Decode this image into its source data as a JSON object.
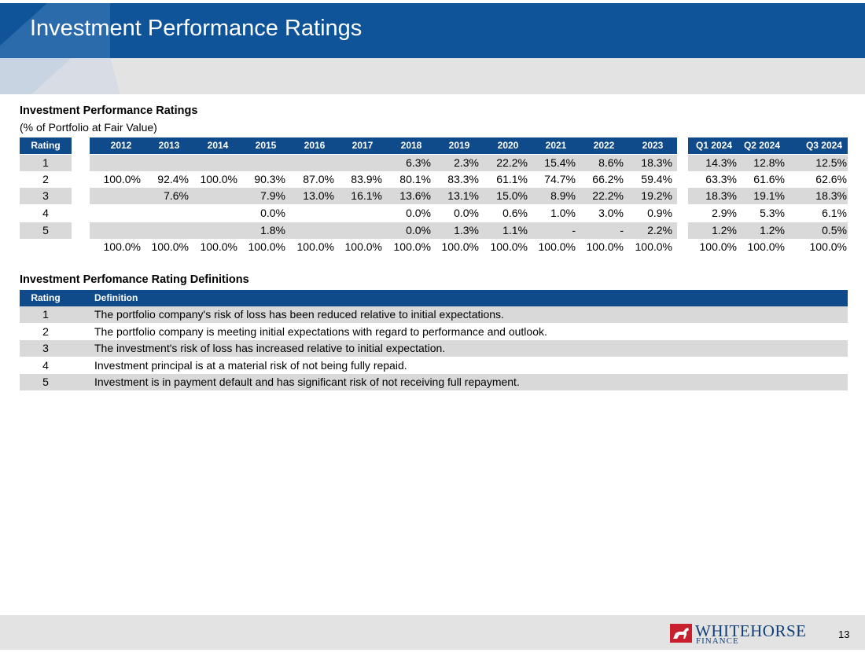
{
  "header": {
    "title": "Investment Performance Ratings"
  },
  "ratings_section": {
    "title": "Investment Performance Ratings",
    "subtitle": "(% of Portfolio at Fair Value)",
    "rating_label": "Rating",
    "year_columns": [
      "2012",
      "2013",
      "2014",
      "2015",
      "2016",
      "2017",
      "2018",
      "2019",
      "2020",
      "2021",
      "2022",
      "2023"
    ],
    "quarter_columns": [
      "Q1 2024",
      "Q2 2024",
      "Q3 2024"
    ],
    "rows": [
      {
        "rating": "1",
        "years": [
          "",
          "",
          "",
          "",
          "",
          "",
          "6.3%",
          "2.3%",
          "22.2%",
          "15.4%",
          "8.6%",
          "18.3%"
        ],
        "quarters": [
          "14.3%",
          "12.8%",
          "12.5%"
        ]
      },
      {
        "rating": "2",
        "years": [
          "100.0%",
          "92.4%",
          "100.0%",
          "90.3%",
          "87.0%",
          "83.9%",
          "80.1%",
          "83.3%",
          "61.1%",
          "74.7%",
          "66.2%",
          "59.4%"
        ],
        "quarters": [
          "63.3%",
          "61.6%",
          "62.6%"
        ]
      },
      {
        "rating": "3",
        "years": [
          "",
          "7.6%",
          "",
          "7.9%",
          "13.0%",
          "16.1%",
          "13.6%",
          "13.1%",
          "15.0%",
          "8.9%",
          "22.2%",
          "19.2%"
        ],
        "quarters": [
          "18.3%",
          "19.1%",
          "18.3%"
        ]
      },
      {
        "rating": "4",
        "years": [
          "",
          "",
          "",
          "0.0%",
          "",
          "",
          "0.0%",
          "0.0%",
          "0.6%",
          "1.0%",
          "3.0%",
          "0.9%"
        ],
        "quarters": [
          "2.9%",
          "5.3%",
          "6.1%"
        ]
      },
      {
        "rating": "5",
        "years": [
          "",
          "",
          "",
          "1.8%",
          "",
          "",
          "0.0%",
          "1.3%",
          "1.1%",
          "-",
          "-",
          "2.2%"
        ],
        "quarters": [
          "1.2%",
          "1.2%",
          "0.5%"
        ]
      }
    ],
    "totals": {
      "years": [
        "100.0%",
        "100.0%",
        "100.0%",
        "100.0%",
        "100.0%",
        "100.0%",
        "100.0%",
        "100.0%",
        "100.0%",
        "100.0%",
        "100.0%",
        "100.0%"
      ],
      "quarters": [
        "100.0%",
        "100.0%",
        "100.0%"
      ]
    }
  },
  "definitions_section": {
    "title": "Investment Perfomance Rating Definitions",
    "rating_label": "Rating",
    "definition_label": "Definition",
    "rows": [
      {
        "rating": "1",
        "text": "The portfolio company's risk of loss has been reduced relative to initial expectations."
      },
      {
        "rating": "2",
        "text": "The portfolio company is meeting initial expectations with regard to performance and outlook."
      },
      {
        "rating": "3",
        "text": "The investment's risk of loss has increased relative to initial expectation."
      },
      {
        "rating": "4",
        "text": "Investment principal is at a material risk of not being fully repaid."
      },
      {
        "rating": "5",
        "text": "Investment is in payment default and has significant risk of not receiving full repayment."
      }
    ]
  },
  "footer": {
    "logo_name": "WHITEHORSE",
    "logo_sub": "FINANCE",
    "page_number": "13"
  },
  "colors": {
    "header_blue": "#0f5499",
    "table_header": "#0f4a8a",
    "row_shade": "#d9d9d9",
    "logo_red": "#c8202f"
  }
}
